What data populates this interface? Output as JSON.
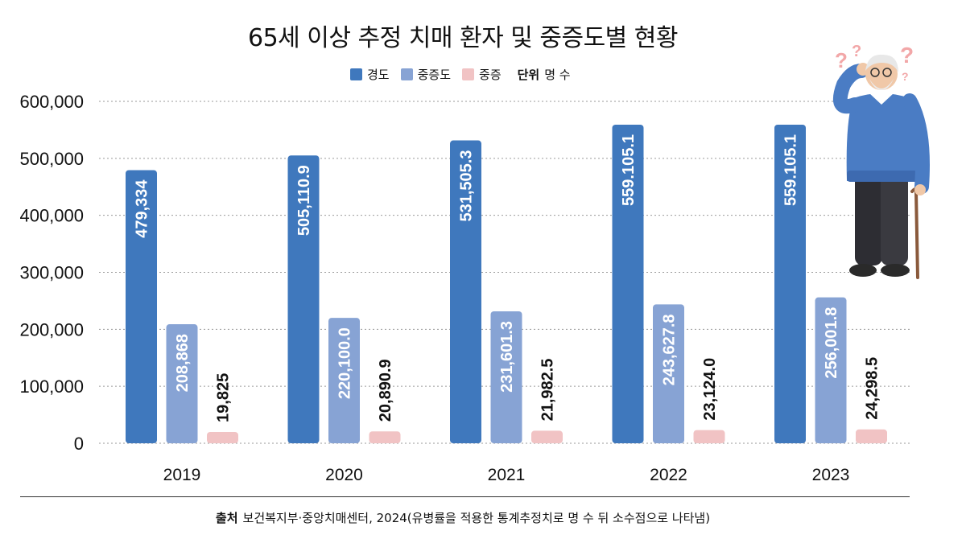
{
  "chart_data": {
    "type": "bar",
    "title": "65세 이상 추정 치매 환자 및 중증도별 현황",
    "categories": [
      "2019",
      "2020",
      "2021",
      "2022",
      "2023"
    ],
    "series": [
      {
        "name": "경도",
        "color": "#3f78bd",
        "values": [
          479334,
          505110.9,
          531505.3,
          559105.1,
          559105.1
        ],
        "labels": [
          "479,334",
          "505,110.9",
          "531,505.3",
          "559.105.1",
          "559.105.1"
        ]
      },
      {
        "name": "중증도",
        "color": "#87a3d4",
        "values": [
          208868,
          220100.0,
          231601.3,
          243627.8,
          256001.8
        ],
        "labels": [
          "208,868",
          "220,100.0",
          "231,601.3",
          "243,627.8",
          "256,001.8"
        ]
      },
      {
        "name": "중증",
        "color": "#f1c3c4",
        "values": [
          19825,
          20890.9,
          21982.5,
          23124.0,
          24298.5
        ],
        "labels": [
          "19,825",
          "20,890.9",
          "21,982.5",
          "23,124.0",
          "24,298.5"
        ]
      }
    ],
    "ylim": [
      0,
      600000
    ],
    "yticks": [
      0,
      100000,
      200000,
      300000,
      400000,
      500000,
      600000
    ],
    "ytick_labels": [
      "0",
      "100,000",
      "200,000",
      "300,000",
      "400,000",
      "500,000",
      "600,000"
    ],
    "grid": true,
    "legend_position": "top-center"
  },
  "legend": {
    "items": [
      {
        "label": "경도",
        "color": "#3f78bd"
      },
      {
        "label": "중증도",
        "color": "#87a3d4"
      },
      {
        "label": "중증",
        "color": "#f1c3c4"
      }
    ],
    "unit_label": "단위",
    "unit_value": "명 수"
  },
  "source": {
    "label": "출처",
    "text": "보건복지부·중앙치매센터, 2024(유병률을 적용한 통계추정치로 명 수 뒤 소수점으로 나타냄)"
  },
  "illustration": {
    "name": "confused-elderly-man",
    "marks": [
      "?",
      "?",
      "?",
      "?"
    ]
  }
}
